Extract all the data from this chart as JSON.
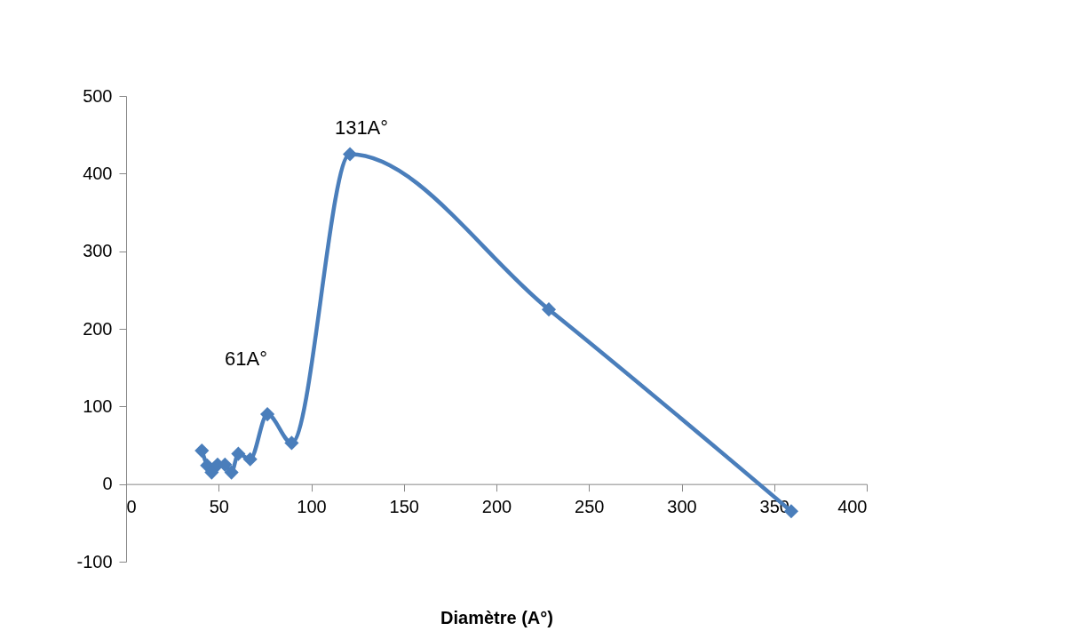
{
  "chart_data": {
    "type": "line",
    "xlabel": "Diamètre (A°)",
    "x": [
      40.9,
      43.8,
      46.2,
      49.4,
      53.4,
      56.9,
      60.6,
      67,
      76.3,
      89.4,
      120.9,
      228.3,
      359.2
    ],
    "series": [
      {
        "color": "#4a7ebb",
        "values": [
          43,
          24,
          15,
          25,
          25,
          15,
          39,
          32,
          90,
          53,
          425,
          225,
          -35
        ]
      }
    ],
    "xlim": [
      0,
      400
    ],
    "xticks": [
      0,
      50,
      100,
      150,
      200,
      250,
      300,
      350,
      400
    ],
    "ylim": [
      -100,
      500
    ],
    "yticks": [
      -100,
      0,
      100,
      200,
      300,
      400,
      500
    ],
    "marker": "diamond",
    "line_style": "solid",
    "grid": false,
    "annotations": [
      "61A°",
      "131A°"
    ]
  }
}
